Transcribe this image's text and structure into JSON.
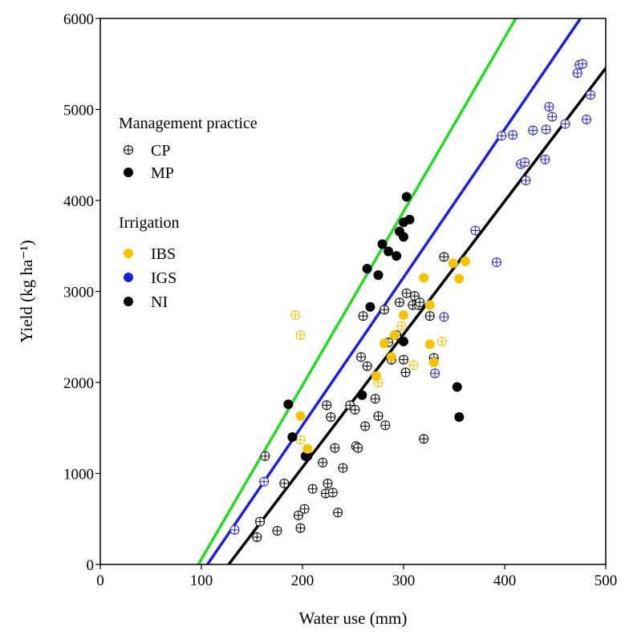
{
  "chart_data": {
    "type": "scatter",
    "xlabel": "Water use (mm)",
    "ylabel": "Yield (kg ha⁻¹)",
    "xlim": [
      0,
      500
    ],
    "ylim": [
      0,
      6000
    ],
    "xticks": [
      0,
      100,
      200,
      300,
      400,
      500
    ],
    "yticks": [
      0,
      1000,
      2000,
      3000,
      4000,
      5000,
      6000
    ],
    "grid": false,
    "legend_position": "upper-left",
    "legend": {
      "management_title": "Management practice",
      "management_items": [
        {
          "label": "CP",
          "marker": "crossed-circle"
        },
        {
          "label": "MP",
          "marker": "filled-circle"
        }
      ],
      "irrigation_title": "Irrigation",
      "irrigation_items": [
        {
          "label": "IBS",
          "color": "#F5C400"
        },
        {
          "label": "IGS",
          "color": "#1F1FE0"
        },
        {
          "label": "NI",
          "color": "#000000"
        }
      ]
    },
    "regression_lines": [
      {
        "color": "#22DD22",
        "x": [
          97,
          411
        ],
        "y": [
          0,
          6000
        ]
      },
      {
        "color": "#1F1FE0",
        "x": [
          106,
          475
        ],
        "y": [
          0,
          6000
        ]
      },
      {
        "color": "#000000",
        "x": [
          127,
          510
        ],
        "y": [
          0,
          5600
        ]
      }
    ],
    "series": [
      {
        "group": "CP-NI",
        "marker": "crossed-circle",
        "color": "#000000",
        "points": [
          [
            155,
            300
          ],
          [
            158,
            470
          ],
          [
            163,
            1190
          ],
          [
            175,
            370
          ],
          [
            182,
            890
          ],
          [
            198,
            400
          ],
          [
            196,
            540
          ],
          [
            202,
            610
          ],
          [
            205,
            1190
          ],
          [
            210,
            830
          ],
          [
            220,
            1120
          ],
          [
            225,
            890
          ],
          [
            223,
            780
          ],
          [
            228,
            1620
          ],
          [
            224,
            1750
          ],
          [
            232,
            1280
          ],
          [
            230,
            790
          ],
          [
            235,
            570
          ],
          [
            240,
            1060
          ],
          [
            247,
            1750
          ],
          [
            252,
            1700
          ],
          [
            253,
            1300
          ],
          [
            255,
            1280
          ],
          [
            258,
            2280
          ],
          [
            262,
            1520
          ],
          [
            264,
            2180
          ],
          [
            272,
            1820
          ],
          [
            275,
            1630
          ],
          [
            282,
            1530
          ],
          [
            288,
            2250
          ],
          [
            293,
            2520
          ],
          [
            296,
            2880
          ],
          [
            300,
            2250
          ],
          [
            303,
            2980
          ],
          [
            309,
            2850
          ],
          [
            311,
            2950
          ],
          [
            315,
            2850
          ],
          [
            316,
            2880
          ],
          [
            320,
            1380
          ],
          [
            326,
            2730
          ],
          [
            330,
            2270
          ],
          [
            340,
            3380
          ],
          [
            302,
            2110
          ],
          [
            260,
            2730
          ],
          [
            281,
            2800
          ],
          [
            285,
            2440
          ]
        ]
      },
      {
        "group": "CP-IBS",
        "marker": "crossed-circle",
        "color": "#F5C400",
        "points": [
          [
            193,
            2740
          ],
          [
            198,
            2520
          ],
          [
            198,
            1370
          ],
          [
            275,
            2000
          ],
          [
            310,
            2190
          ],
          [
            338,
            2450
          ],
          [
            298,
            2620
          ]
        ]
      },
      {
        "group": "CP-IGS",
        "marker": "crossed-circle",
        "color": "#1F1FE0",
        "points": [
          [
            133,
            380
          ],
          [
            162,
            910
          ],
          [
            331,
            2100
          ],
          [
            340,
            2720
          ],
          [
            371,
            3670
          ],
          [
            392,
            3320
          ],
          [
            397,
            4710
          ],
          [
            408,
            4720
          ],
          [
            416,
            4400
          ],
          [
            421,
            4220
          ],
          [
            420,
            4420
          ],
          [
            428,
            4770
          ],
          [
            440,
            4450
          ],
          [
            441,
            4780
          ],
          [
            444,
            5030
          ],
          [
            447,
            4920
          ],
          [
            460,
            4840
          ],
          [
            472,
            5400
          ],
          [
            474,
            5490
          ],
          [
            477,
            5500
          ],
          [
            481,
            4890
          ],
          [
            485,
            5160
          ]
        ]
      },
      {
        "group": "MP-NI",
        "marker": "filled-circle",
        "color": "#000000",
        "points": [
          [
            186,
            1760
          ],
          [
            190,
            1400
          ],
          [
            203,
            1190
          ],
          [
            205,
            1200
          ],
          [
            259,
            1860
          ],
          [
            264,
            3250
          ],
          [
            267,
            2830
          ],
          [
            275,
            3180
          ],
          [
            279,
            3520
          ],
          [
            285,
            3440
          ],
          [
            293,
            3390
          ],
          [
            296,
            3660
          ],
          [
            300,
            3760
          ],
          [
            300,
            3600
          ],
          [
            300,
            2450
          ],
          [
            303,
            4040
          ],
          [
            306,
            3790
          ],
          [
            353,
            1950
          ],
          [
            355,
            1620
          ]
        ]
      },
      {
        "group": "MP-IBS",
        "marker": "filled-circle",
        "color": "#F5C400",
        "points": [
          [
            198,
            1630
          ],
          [
            205,
            1270
          ],
          [
            273,
            2070
          ],
          [
            281,
            2430
          ],
          [
            288,
            2280
          ],
          [
            291,
            2520
          ],
          [
            300,
            2740
          ],
          [
            320,
            3150
          ],
          [
            326,
            2850
          ],
          [
            326,
            2420
          ],
          [
            330,
            2220
          ],
          [
            349,
            3310
          ],
          [
            355,
            3140
          ],
          [
            361,
            3330
          ]
        ]
      }
    ]
  }
}
